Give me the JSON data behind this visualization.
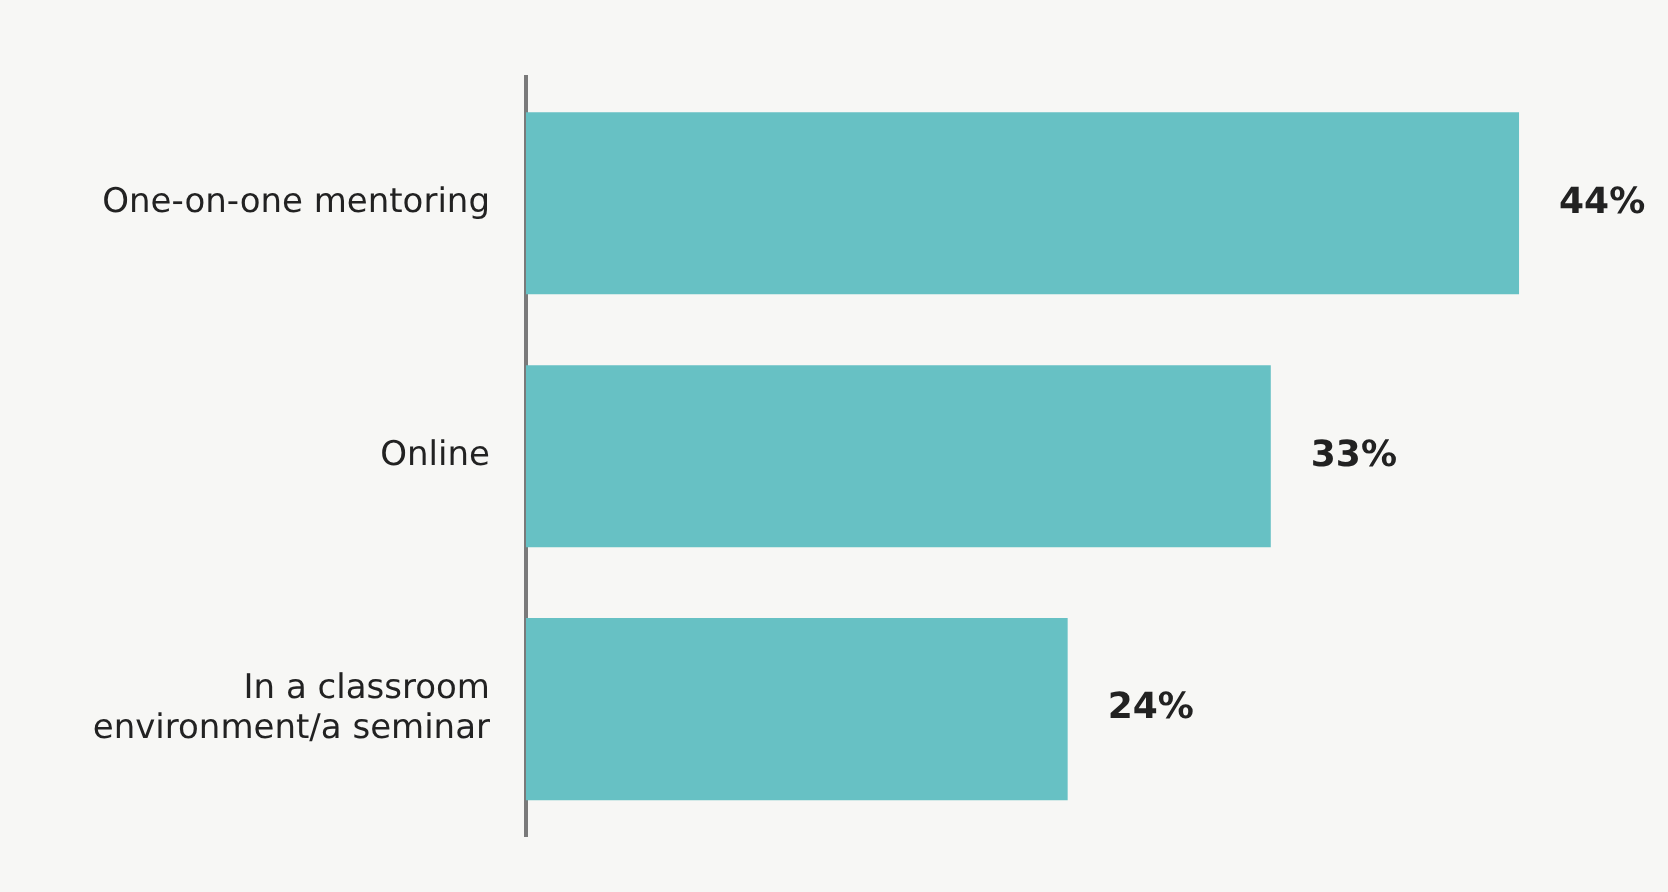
{
  "chart_data": {
    "type": "bar",
    "orientation": "horizontal",
    "categories": [
      "One-on-one mentoring",
      "Online",
      "In a classroom environment/a seminar"
    ],
    "values": [
      44,
      33,
      24
    ],
    "value_labels": [
      "44%",
      "33%",
      "24%"
    ],
    "color": "#67c1c4",
    "grid": false,
    "legend": false
  }
}
